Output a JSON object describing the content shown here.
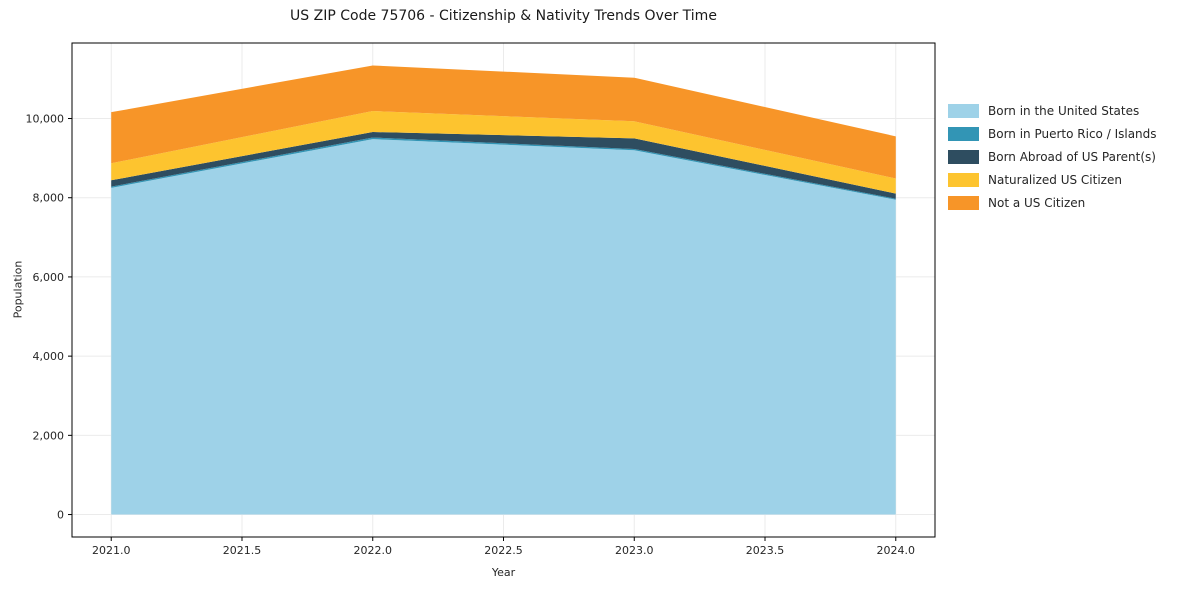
{
  "chart_data": {
    "type": "area",
    "stacked": true,
    "title": "US ZIP Code 75706 - Citizenship & Nativity Trends Over Time",
    "xlabel": "Year",
    "ylabel": "Population",
    "x": [
      2021,
      2022,
      2023,
      2024
    ],
    "series": [
      {
        "name": "Born in the United States",
        "color": "#9ed2e8",
        "values": [
          8250,
          9480,
          9200,
          7950
        ]
      },
      {
        "name": "Born in Puerto Rico / Islands",
        "color": "#3295b5",
        "values": [
          30,
          40,
          30,
          25
        ]
      },
      {
        "name": "Born Abroad of US Parent(s)",
        "color": "#2e4d60",
        "values": [
          160,
          140,
          270,
          130
        ]
      },
      {
        "name": "Naturalized US Citizen",
        "color": "#fdc42f",
        "values": [
          430,
          530,
          430,
          380
        ]
      },
      {
        "name": "Not a US Citizen",
        "color": "#f79528",
        "values": [
          1290,
          1150,
          1100,
          1065
        ]
      }
    ],
    "x_tick_values": [
      2021.0,
      2021.5,
      2022.0,
      2022.5,
      2023.0,
      2023.5,
      2024.0
    ],
    "x_tick_labels": [
      "2021.0",
      "2021.5",
      "2022.0",
      "2022.5",
      "2023.0",
      "2023.5",
      "2024.0"
    ],
    "y_tick_values": [
      0,
      2000,
      4000,
      6000,
      8000,
      10000
    ],
    "y_tick_labels": [
      "0",
      "2,000",
      "4,000",
      "6,000",
      "8,000",
      "10,000"
    ],
    "xlim": [
      2020.85,
      2024.15
    ],
    "ylim": [
      -567,
      11907
    ],
    "grid": true,
    "legend_position": "right-outside"
  }
}
